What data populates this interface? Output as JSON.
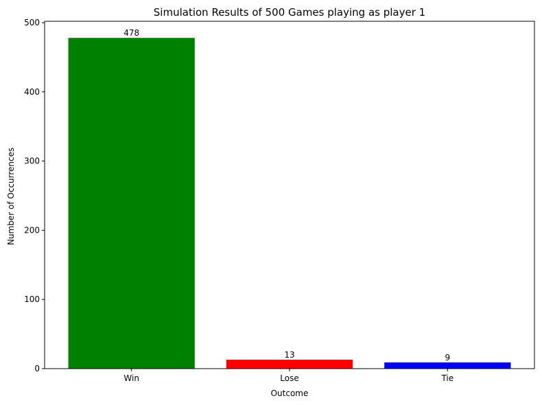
{
  "chart_data": {
    "type": "bar",
    "title": "Simulation Results of 500 Games playing as player 1",
    "xlabel": "Outcome",
    "ylabel": "Number of Occurrences",
    "categories": [
      "Win",
      "Lose",
      "Tie"
    ],
    "values": [
      478,
      13,
      9
    ],
    "colors": [
      "#008000",
      "#ff0000",
      "#0000ff"
    ],
    "ylim": [
      0,
      502
    ],
    "yticks": [
      0,
      100,
      200,
      300,
      400,
      500
    ],
    "grid": false,
    "legend": "none"
  }
}
